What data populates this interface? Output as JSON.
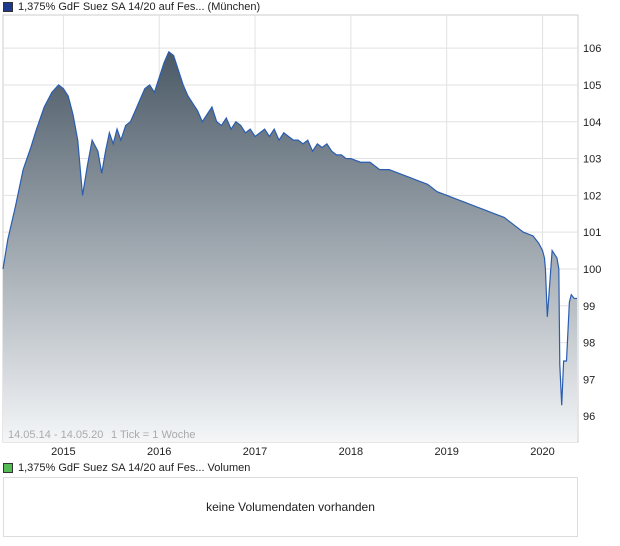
{
  "legend": {
    "price_label": "1,375% GdF Suez SA 14/20 auf Fes... (München)",
    "price_color": "#1f3a8a",
    "volume_label": "1,375% GdF Suez SA 14/20 auf Fes... Volumen",
    "volume_color": "#55bb55"
  },
  "chart_footer": {
    "range": "14.05.14 - 14.05.20",
    "tick_info": "1 Tick = 1 Woche"
  },
  "volume_panel": {
    "message": "keine Volumendaten vorhanden"
  },
  "chart_data": {
    "type": "area",
    "grid": true,
    "y_axis_position": "right",
    "ylim": [
      95.3,
      106.9
    ],
    "y_ticks": [
      96,
      97,
      98,
      99,
      100,
      101,
      102,
      103,
      104,
      105,
      106
    ],
    "x_ticks": [
      {
        "label": "2015",
        "x": 2015.0
      },
      {
        "label": "2016",
        "x": 2016.0
      },
      {
        "label": "2017",
        "x": 2017.0
      },
      {
        "label": "2018",
        "x": 2018.0
      },
      {
        "label": "2019",
        "x": 2019.0
      },
      {
        "label": "2020",
        "x": 2020.0
      }
    ],
    "xlim": [
      2014.37,
      2020.37
    ],
    "line_color": "#2a5db0",
    "fill_top_color": "#4a5966",
    "fill_bottom_color": "#f4f6f8",
    "series": [
      {
        "x": [
          2014.37,
          2014.42,
          2014.5,
          2014.58,
          2014.62,
          2014.66,
          2014.72,
          2014.8,
          2014.88,
          2014.95,
          2015.0,
          2015.05,
          2015.1,
          2015.15,
          2015.2,
          2015.25,
          2015.3,
          2015.36,
          2015.4,
          2015.44,
          2015.48,
          2015.52,
          2015.56,
          2015.6,
          2015.65,
          2015.7,
          2015.75,
          2015.8,
          2015.85,
          2015.9,
          2015.95,
          2016.0,
          2016.05,
          2016.1,
          2016.15,
          2016.2,
          2016.25,
          2016.3,
          2016.35,
          2016.4,
          2016.45,
          2016.5,
          2016.55,
          2016.6,
          2016.65,
          2016.7,
          2016.75,
          2016.8,
          2016.85,
          2016.9,
          2016.95,
          2017.0,
          2017.05,
          2017.1,
          2017.15,
          2017.2,
          2017.25,
          2017.3,
          2017.35,
          2017.4,
          2017.45,
          2017.5,
          2017.55,
          2017.6,
          2017.65,
          2017.7,
          2017.75,
          2017.8,
          2017.85,
          2017.9,
          2017.95,
          2018.0,
          2018.1,
          2018.2,
          2018.3,
          2018.4,
          2018.5,
          2018.6,
          2018.7,
          2018.8,
          2018.9,
          2019.0,
          2019.1,
          2019.2,
          2019.3,
          2019.4,
          2019.5,
          2019.6,
          2019.7,
          2019.8,
          2019.9,
          2019.96,
          2020.0,
          2020.02,
          2020.03,
          2020.05,
          2020.1,
          2020.15,
          2020.17,
          2020.18,
          2020.2,
          2020.22,
          2020.25,
          2020.28,
          2020.3,
          2020.33,
          2020.36
        ],
        "y": [
          100.0,
          100.8,
          101.7,
          102.7,
          103.0,
          103.3,
          103.8,
          104.4,
          104.8,
          105.0,
          104.9,
          104.7,
          104.2,
          103.5,
          102.0,
          102.8,
          103.5,
          103.2,
          102.6,
          103.2,
          103.7,
          103.4,
          103.8,
          103.5,
          103.9,
          104.0,
          104.3,
          104.6,
          104.9,
          105.0,
          104.8,
          105.2,
          105.6,
          105.9,
          105.8,
          105.4,
          105.0,
          104.7,
          104.5,
          104.3,
          104.0,
          104.2,
          104.4,
          104.0,
          103.9,
          104.1,
          103.8,
          104.0,
          103.9,
          103.7,
          103.8,
          103.6,
          103.7,
          103.8,
          103.6,
          103.8,
          103.5,
          103.7,
          103.6,
          103.5,
          103.5,
          103.4,
          103.5,
          103.2,
          103.4,
          103.3,
          103.4,
          103.2,
          103.1,
          103.1,
          103.0,
          103.0,
          102.9,
          102.9,
          102.7,
          102.7,
          102.6,
          102.5,
          102.4,
          102.3,
          102.1,
          102.0,
          101.9,
          101.8,
          101.7,
          101.6,
          101.5,
          101.4,
          101.2,
          101.0,
          100.9,
          100.7,
          100.5,
          100.3,
          100.0,
          98.7,
          100.5,
          100.3,
          100.0,
          97.4,
          96.3,
          97.5,
          97.5,
          99.1,
          99.3,
          99.2,
          99.2
        ]
      }
    ]
  }
}
